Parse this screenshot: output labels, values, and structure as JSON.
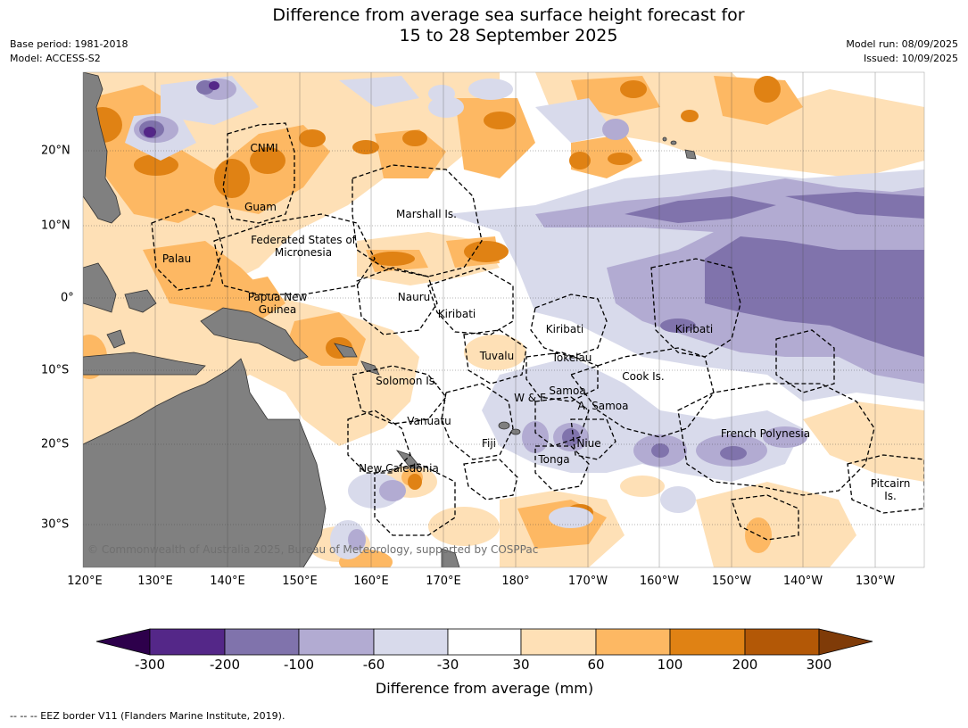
{
  "title": {
    "line1": "Difference from average sea surface height forecast for",
    "line2": "15 to 28 September 2025"
  },
  "meta_left": {
    "base_period": "Base period: 1981-2018",
    "model": "Model: ACCESS-S2"
  },
  "meta_right": {
    "model_run": "Model run: 08/09/2025",
    "issued": "Issued: 10/09/2025"
  },
  "map": {
    "longitude_labels": [
      "120°E",
      "130°E",
      "140°E",
      "150°E",
      "160°E",
      "170°E",
      "180°",
      "170°W",
      "160°W",
      "150°W",
      "140°W",
      "130°W"
    ],
    "latitude_labels": [
      "20°N",
      "10°N",
      "0°",
      "10°S",
      "20°S",
      "30°S"
    ],
    "regions": [
      "CNMI",
      "Guam",
      "Marshall Is.",
      "Federated States of Micronesia",
      "Palau",
      "Papua New Guinea",
      "Nauru",
      "Kiribati",
      "Kiribati",
      "Kiribati",
      "Tuvalu",
      "Tokelau",
      "Cook Is.",
      "Solomon Is.",
      "Samoa",
      "W & F",
      "A. Samoa",
      "Vanuatu",
      "Fiji",
      "Niue",
      "Tonga",
      "French Polynesia",
      "New Caledonia",
      "Pitcairn Is."
    ],
    "copyright": "© Commonwealth of Australia 2025, Bureau of Meteorology, supported by COSPPac",
    "colors": {
      "land": "#808080",
      "neg300": "#2d004b",
      "neg200": "#542788",
      "neg100": "#8073ac",
      "neg60": "#b2abd2",
      "neg30": "#d8daeb",
      "neutral": "#ffffff",
      "pos30": "#fee0b6",
      "pos60": "#fdb863",
      "pos100": "#e08214",
      "pos200": "#b35806",
      "pos300": "#7f3b08"
    }
  },
  "colorbar": {
    "ticks": [
      "-300",
      "-200",
      "-100",
      "-60",
      "-30",
      "30",
      "60",
      "100",
      "200",
      "300"
    ],
    "label": "Difference from average (mm)",
    "colors": [
      "#2d004b",
      "#542788",
      "#8073ac",
      "#b2abd2",
      "#d8daeb",
      "#ffffff",
      "#fee0b6",
      "#fdb863",
      "#e08214",
      "#b35806",
      "#7f3b08"
    ]
  },
  "footer": "--  --  -- EEZ border V11 (Flanders Marine Institute, 2019)."
}
